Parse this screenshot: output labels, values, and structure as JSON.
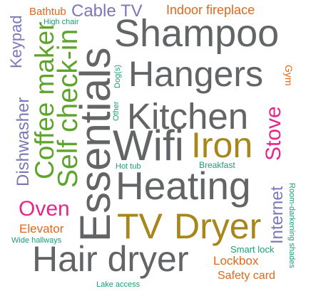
{
  "words": {
    "shampoo": {
      "text": "Shampoo",
      "color": "#636466"
    },
    "hangers": {
      "text": "Hangers",
      "color": "#636466"
    },
    "kitchen": {
      "text": "Kitchen",
      "color": "#636466"
    },
    "wifi": {
      "text": "Wifi",
      "color": "#636466"
    },
    "iron": {
      "text": "Iron",
      "color": "#a8861a"
    },
    "heating": {
      "text": "Heating",
      "color": "#636466"
    },
    "essentials": {
      "text": "Essentials",
      "color": "#636466"
    },
    "tv": {
      "text": "TV",
      "color": "#a8861a"
    },
    "dryer": {
      "text": "Dryer",
      "color": "#a8861a"
    },
    "hair_dryer": {
      "text": "Hair dryer",
      "color": "#636466"
    },
    "coffee_maker": {
      "text": "Coffee maker",
      "color": "#5ea32b"
    },
    "self_check_in": {
      "text": "Self check-in",
      "color": "#5ea32b"
    },
    "dishwasher": {
      "text": "Dishwasher",
      "color": "#7a78b8"
    },
    "keypad": {
      "text": "Keypad",
      "color": "#7a78b8"
    },
    "cable_tv": {
      "text": "Cable TV",
      "color": "#7a78b8"
    },
    "bathtub": {
      "text": "Bathtub",
      "color": "#e0681b"
    },
    "high_chair": {
      "text": "High chair",
      "color": "#1a9e76"
    },
    "indoor_fireplace": {
      "text": "Indoor fireplace",
      "color": "#e0681b"
    },
    "gym": {
      "text": "Gym",
      "color": "#e0681b"
    },
    "stove": {
      "text": "Stove",
      "color": "#e3288a"
    },
    "dogs": {
      "text": "Dog(s)",
      "color": "#1a9e76"
    },
    "other": {
      "text": "Other",
      "color": "#1a9e76"
    },
    "hot_tub": {
      "text": "Hot tub",
      "color": "#1a9e76"
    },
    "breakfast": {
      "text": "Breakfast",
      "color": "#1a9e76"
    },
    "oven": {
      "text": "Oven",
      "color": "#e3288a"
    },
    "internet": {
      "text": "Internet",
      "color": "#7a78b8"
    },
    "elevator": {
      "text": "Elevator",
      "color": "#e0681b"
    },
    "wide_hallways": {
      "text": "Wide hallways",
      "color": "#1a9e76"
    },
    "room_darkening_shades": {
      "text": "Room-darkening shades",
      "color": "#1a9e76"
    },
    "smart_lock": {
      "text": "Smart lock",
      "color": "#1a9e76"
    },
    "lockbox": {
      "text": "Lockbox",
      "color": "#e0681b"
    },
    "safety_card": {
      "text": "Safety card",
      "color": "#e0681b"
    },
    "lake_access": {
      "text": "Lake access",
      "color": "#1a9e76"
    }
  }
}
